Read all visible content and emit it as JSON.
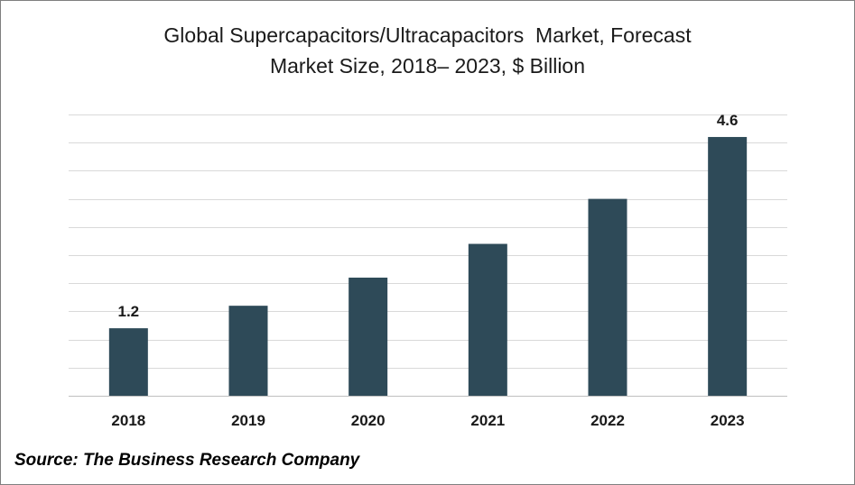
{
  "chart_data": {
    "type": "bar",
    "title": "Global Supercapacitors/Ultracapacitors  Market, Forecast",
    "subtitle": "Market Size, 2018– 2023, $ Billion",
    "categories": [
      "2018",
      "2019",
      "2020",
      "2021",
      "2022",
      "2023"
    ],
    "values": [
      1.2,
      1.6,
      2.1,
      2.7,
      3.5,
      4.6
    ],
    "data_labels": [
      "1.2",
      "",
      "",
      "",
      "",
      "4.6"
    ],
    "ylim": [
      0,
      5
    ],
    "grid": true,
    "bar_color": "#2e4a58",
    "xlabel": "",
    "ylabel": ""
  },
  "source": "Source: The Business Research Company"
}
